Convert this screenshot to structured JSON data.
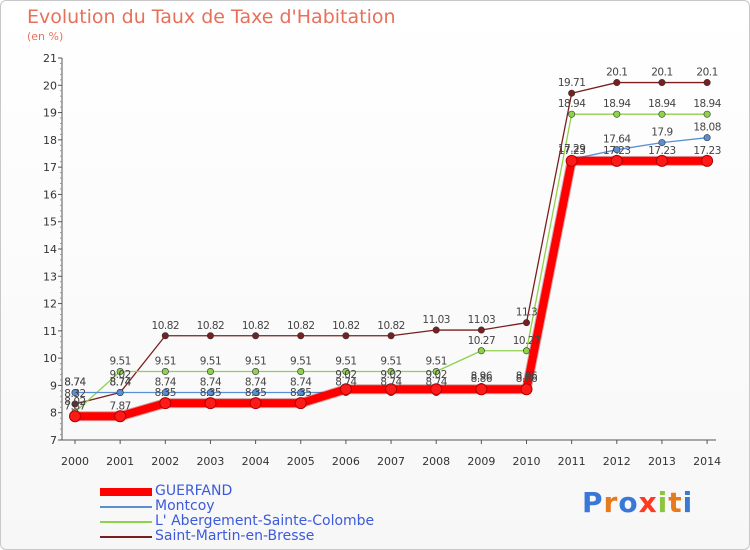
{
  "header": {
    "title": "Evolution du Taux de Taxe d'Habitation",
    "unit": "(en %)"
  },
  "brand": {
    "text": "Proxiti",
    "letter_colors": [
      "#3a78d8",
      "#e87a1e",
      "#3a78d8",
      "#ff3b1f",
      "#8cc63f",
      "#e87a1e",
      "#3a78d8"
    ]
  },
  "chart_data": {
    "type": "line",
    "title": "Evolution du Taux de Taxe d'Habitation",
    "ylabel": "(en %)",
    "xlabel": "",
    "x": [
      "2000",
      "2001",
      "2002",
      "2003",
      "2004",
      "2005",
      "2006",
      "2007",
      "2008",
      "2009",
      "2010",
      "2011",
      "2012",
      "2013",
      "2014"
    ],
    "ylim": [
      7,
      21
    ],
    "yticks": [
      "7",
      "8",
      "9",
      "10",
      "11",
      "12",
      "13",
      "14",
      "15",
      "16",
      "17",
      "18",
      "19",
      "20",
      "21"
    ],
    "grid": "none",
    "legend_position": "bottom-left",
    "series": [
      {
        "name": "GUERFAND",
        "color": "#ff0000",
        "values": [
          7.87,
          7.87,
          8.35,
          8.35,
          8.35,
          8.35,
          8.86,
          8.86,
          8.86,
          8.86,
          8.86,
          17.23,
          17.23,
          17.23,
          17.23
        ],
        "labels": [
          "",
          "",
          "",
          "",
          "",
          "",
          "",
          "",
          "",
          "",
          "",
          "",
          "",
          "",
          ""
        ]
      },
      {
        "name": "Montcoy",
        "color": "#5b8fd4",
        "values": [
          8.74,
          8.74,
          8.74,
          8.74,
          8.74,
          8.74,
          8.74,
          8.74,
          8.74,
          8.96,
          8.96,
          17.29,
          17.64,
          17.9,
          18.08
        ],
        "labels": [
          "8.74",
          "8.74",
          "8.74",
          "8.74",
          "8.74",
          "8.74",
          "8.74",
          "8.74",
          "8.74",
          "8.96",
          "8.96",
          "17.29",
          "17.64",
          "17.9",
          "18.08"
        ]
      },
      {
        "name": "L' Abergement-Sainte-Colombe",
        "color": "#8ed24a",
        "values": [
          8.02,
          9.51,
          9.51,
          9.51,
          9.51,
          9.51,
          9.51,
          9.51,
          9.51,
          10.27,
          10.27,
          18.94,
          18.94,
          18.94,
          18.94
        ],
        "labels": [
          "8.02",
          "9.51",
          "9.51",
          "9.51",
          "9.51",
          "9.51",
          "9.51",
          "9.51",
          "9.51",
          "10.27",
          "10.27",
          "18.94",
          "18.94",
          "18.94",
          "18.94"
        ]
      },
      {
        "name": "Saint-Martin-en-Bresse",
        "color": "#7a1f1f",
        "values": [
          8.32,
          8.74,
          10.82,
          10.82,
          10.82,
          10.82,
          10.82,
          10.82,
          11.03,
          11.03,
          11.3,
          19.71,
          20.1,
          20.1,
          20.1
        ],
        "labels": [
          "8.32",
          "8.74",
          "10.82",
          "10.82",
          "10.82",
          "10.82",
          "10.82",
          "10.82",
          "11.03",
          "11.03",
          "11.3",
          "19.71",
          "20.1",
          "20.1",
          "20.1"
        ]
      }
    ],
    "extra_labels": [
      {
        "x": "2000",
        "y": 8.74,
        "text": "8.74"
      },
      {
        "x": "2000",
        "y": 7.87,
        "text": "7.87"
      },
      {
        "x": "2001",
        "y": 9.02,
        "text": "9.02"
      },
      {
        "x": "2001",
        "y": 7.87,
        "text": "7.87"
      },
      {
        "x": "2002",
        "y": 8.35,
        "text": "8.35"
      },
      {
        "x": "2003",
        "y": 8.35,
        "text": "8.35"
      },
      {
        "x": "2004",
        "y": 8.35,
        "text": "8.35"
      },
      {
        "x": "2005",
        "y": 8.35,
        "text": "8.35"
      },
      {
        "x": "2006",
        "y": 9.02,
        "text": "9.02"
      },
      {
        "x": "2007",
        "y": 9.02,
        "text": "9.02"
      },
      {
        "x": "2008",
        "y": 9.02,
        "text": "9.02"
      },
      {
        "x": "2009",
        "y": 8.86,
        "text": "8.86"
      },
      {
        "x": "2010",
        "y": 8.86,
        "text": "8.86"
      },
      {
        "x": "2011",
        "y": 17.23,
        "text": "17.23"
      },
      {
        "x": "2012",
        "y": 17.23,
        "text": "17.23"
      },
      {
        "x": "2013",
        "y": 17.23,
        "text": "17.23"
      },
      {
        "x": "2014",
        "y": 17.23,
        "text": "17.23"
      }
    ]
  }
}
